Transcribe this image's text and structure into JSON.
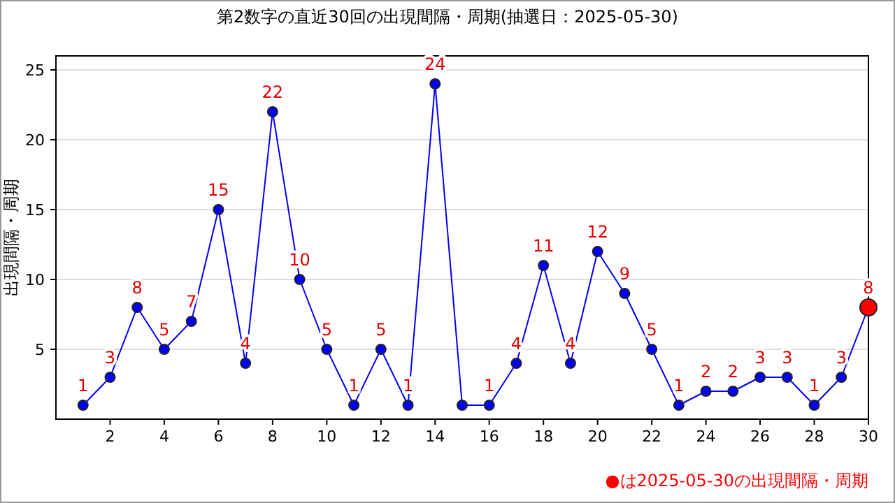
{
  "chart_data": {
    "type": "line",
    "title": "第2数字の直近30回の出現間隔・周期(抽選日：2025-05-30)",
    "ylabel": "出現間隔・周期",
    "x": [
      1,
      2,
      3,
      4,
      5,
      6,
      7,
      8,
      9,
      10,
      11,
      12,
      13,
      14,
      15,
      16,
      17,
      18,
      19,
      20,
      21,
      22,
      23,
      24,
      25,
      26,
      27,
      28,
      29,
      30
    ],
    "xlim": [
      0,
      30
    ],
    "xticks": [
      2,
      4,
      6,
      8,
      10,
      12,
      14,
      16,
      18,
      20,
      22,
      24,
      26,
      28,
      30
    ],
    "ylim": [
      0,
      26
    ],
    "yticks": [
      5,
      10,
      15,
      20,
      25
    ],
    "grid": "y",
    "marker": "circle",
    "series": [
      {
        "type": "line",
        "color": "#0000ff",
        "values": [
          1,
          3,
          8,
          5,
          7,
          15,
          4,
          22,
          10,
          5,
          1,
          5,
          1,
          24,
          1,
          1,
          4,
          11,
          4,
          12,
          9,
          5,
          1,
          2,
          2,
          3,
          3,
          1,
          3,
          8
        ],
        "value_labels": [
          "1",
          "3",
          "8",
          "5",
          "7",
          "15",
          "4",
          "22",
          "10",
          "5",
          "1",
          "5",
          "1",
          "24",
          null,
          "1",
          "4",
          "11",
          "4",
          "12",
          "9",
          "5",
          "1",
          "2",
          "2",
          "3",
          "3",
          "1",
          "3",
          "8"
        ]
      },
      {
        "type": "scatter",
        "color": "#ff0000",
        "x": [
          30
        ],
        "values": [
          8
        ]
      }
    ],
    "annotations": [
      "●は2025-05-30の出現間隔・周期"
    ]
  }
}
